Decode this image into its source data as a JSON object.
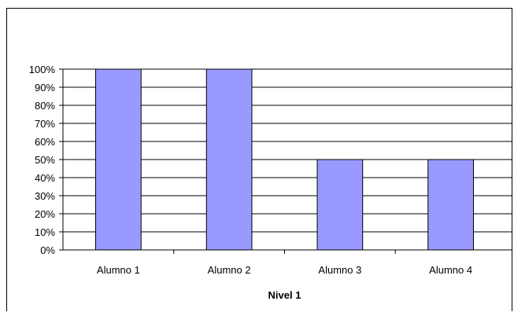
{
  "chart_data": {
    "type": "bar",
    "categories": [
      "Alumno 1",
      "Alumno 2",
      "Alumno 3",
      "Alumno 4"
    ],
    "values": [
      100,
      100,
      50,
      50
    ],
    "title": "",
    "xlabel": "Nivel 1",
    "ylabel": "",
    "ylim": [
      0,
      100
    ],
    "y_ticks": [
      "0%",
      "10%",
      "20%",
      "30%",
      "40%",
      "50%",
      "60%",
      "70%",
      "80%",
      "90%",
      "100%"
    ],
    "grid": true,
    "legend": "none",
    "bar_color": "#9999ff",
    "bar_edge_color": "#000000"
  }
}
